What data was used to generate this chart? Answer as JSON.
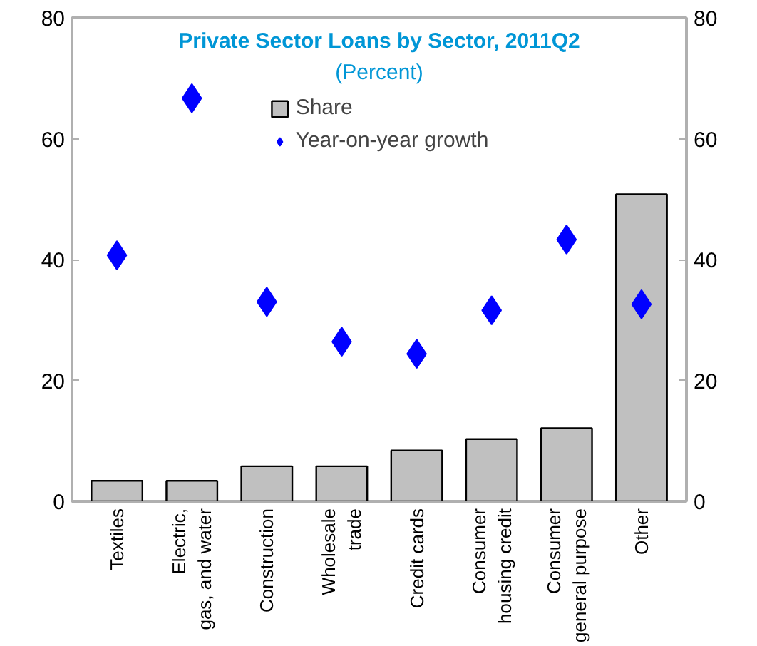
{
  "chart_data": {
    "type": "bar",
    "title": "Private Sector Loans by Sector, 2011Q2",
    "subtitle": "(Percent)",
    "categories": [
      "Textiles",
      "Electric,\ngas, and water",
      "Construction",
      "Wholesale\ntrade",
      "Credit cards",
      "Consumer\nhousing credit",
      "Consumer\ngeneral purpose",
      "Other"
    ],
    "series": [
      {
        "name": "Share",
        "color": "#c0c0c0",
        "values": [
          3.4,
          3.4,
          5.8,
          5.8,
          8.4,
          10.3,
          12.1,
          50.8
        ]
      },
      {
        "name": "Year-on-year growth",
        "type": "scatter",
        "marker": "diamond",
        "color": "#0000ff",
        "values": [
          40.7,
          66.7,
          33.0,
          26.4,
          24.4,
          31.6,
          43.3,
          32.6
        ]
      }
    ],
    "ylim": [
      0,
      80
    ],
    "yticks": [
      0,
      20,
      40,
      60,
      80
    ],
    "y2lim": [
      0,
      80
    ],
    "y2ticks": [
      0,
      20,
      40,
      60,
      80
    ],
    "grid": false,
    "legend": "top"
  }
}
